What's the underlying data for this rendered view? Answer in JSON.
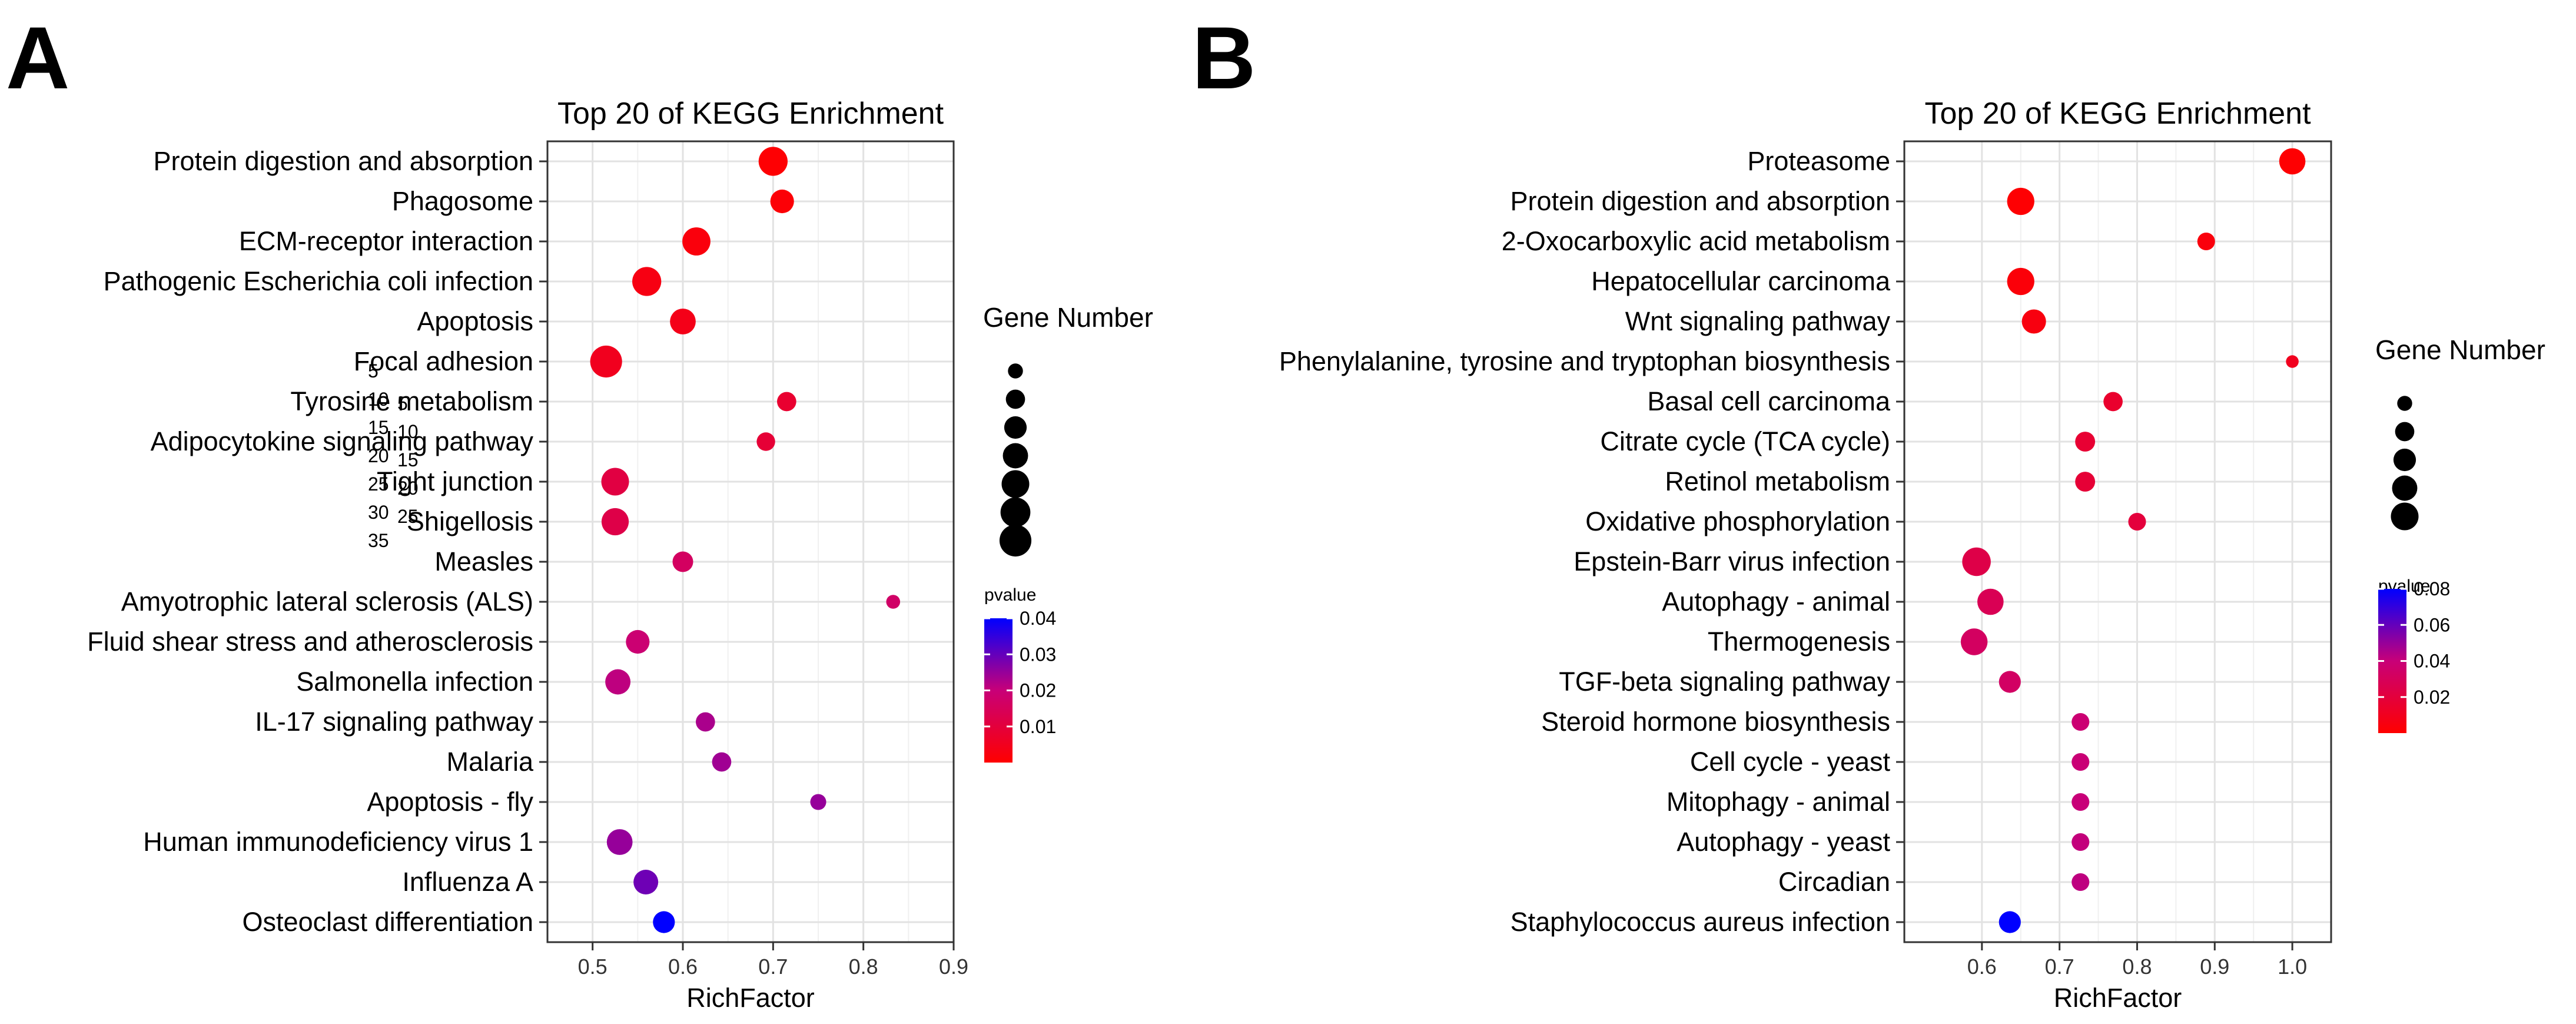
{
  "panels": [
    {
      "letter": "A"
    },
    {
      "letter": "B"
    }
  ],
  "chart_data": [
    {
      "type": "scatter",
      "title": "Top 20 of KEGG Enrichment",
      "xlabel": "RichFactor",
      "ylabel": "",
      "xlim": [
        0.45,
        0.9
      ],
      "xticks": [
        "0.5",
        "0.6",
        "0.7",
        "0.8",
        "0.9"
      ],
      "xtick_values": [
        0.5,
        0.6,
        0.7,
        0.8,
        0.9
      ],
      "size_legend": {
        "title": "Gene Number",
        "values": [
          5,
          10,
          15,
          20,
          25,
          30,
          35
        ]
      },
      "color_legend": {
        "title": "pvalue",
        "range": [
          0.0,
          0.04
        ],
        "ticks": [
          "0.04",
          "0.03",
          "0.02",
          "0.01"
        ],
        "tick_values": [
          0.04,
          0.03,
          0.02,
          0.01
        ],
        "low_color": "#ff0000",
        "mid_color": "#c80078",
        "high_color": "#0000ff"
      },
      "categories": [
        "Protein digestion and absorption",
        "Phagosome",
        "ECM-receptor interaction",
        "Pathogenic Escherichia coli infection",
        "Apoptosis",
        "Focal adhesion",
        "Tyrosine metabolism",
        "Adipocytokine signaling pathway",
        "Tight junction",
        "Shigellosis",
        "Measles",
        "Amyotrophic lateral sclerosis (ALS)",
        "Fluid shear stress and atherosclerosis",
        "Salmonella infection",
        "IL-17 signaling pathway",
        "Malaria",
        "Apoptosis - fly",
        "Human immunodeficiency virus 1",
        "Influenza A",
        "Osteoclast differentiation"
      ],
      "points": [
        {
          "x": 0.7,
          "gene": 28,
          "p": 0.0005
        },
        {
          "x": 0.71,
          "gene": 17,
          "p": 0.001
        },
        {
          "x": 0.615,
          "gene": 26,
          "p": 0.002
        },
        {
          "x": 0.56,
          "gene": 28,
          "p": 0.003
        },
        {
          "x": 0.6,
          "gene": 21,
          "p": 0.004
        },
        {
          "x": 0.515,
          "gene": 35,
          "p": 0.005
        },
        {
          "x": 0.715,
          "gene": 10,
          "p": 0.008
        },
        {
          "x": 0.692,
          "gene": 9,
          "p": 0.009
        },
        {
          "x": 0.525,
          "gene": 25,
          "p": 0.011
        },
        {
          "x": 0.525,
          "gene": 24,
          "p": 0.012
        },
        {
          "x": 0.6,
          "gene": 12,
          "p": 0.016
        },
        {
          "x": 0.833,
          "gene": 4,
          "p": 0.017
        },
        {
          "x": 0.55,
          "gene": 17,
          "p": 0.019
        },
        {
          "x": 0.528,
          "gene": 20,
          "p": 0.021
        },
        {
          "x": 0.625,
          "gene": 10,
          "p": 0.023
        },
        {
          "x": 0.643,
          "gene": 10,
          "p": 0.024
        },
        {
          "x": 0.75,
          "gene": 6,
          "p": 0.025
        },
        {
          "x": 0.53,
          "gene": 21,
          "p": 0.025
        },
        {
          "x": 0.559,
          "gene": 19,
          "p": 0.029
        },
        {
          "x": 0.579,
          "gene": 14,
          "p": 0.04
        }
      ]
    },
    {
      "type": "scatter",
      "title": "Top 20 of KEGG Enrichment",
      "xlabel": "RichFactor",
      "ylabel": "",
      "xlim": [
        0.5,
        1.05
      ],
      "xticks": [
        "0.6",
        "0.7",
        "0.8",
        "0.9",
        "1.0"
      ],
      "xtick_values": [
        0.6,
        0.7,
        0.8,
        0.9,
        1.0
      ],
      "size_legend": {
        "title": "Gene Number",
        "values": [
          5,
          10,
          15,
          20,
          25
        ]
      },
      "color_legend": {
        "title": "pvalue",
        "range": [
          0.0,
          0.08
        ],
        "ticks": [
          "0.08",
          "0.06",
          "0.04",
          "0.02"
        ],
        "tick_values": [
          0.08,
          0.06,
          0.04,
          0.02
        ],
        "low_color": "#ff0000",
        "mid_color": "#c80078",
        "high_color": "#0000ff"
      },
      "categories": [
        "Proteasome",
        "Protein digestion and absorption",
        "2-Oxocarboxylic acid metabolism",
        "Hepatocellular carcinoma",
        "Wnt signaling pathway",
        "Phenylalanine, tyrosine and tryptophan biosynthesis",
        "Basal cell carcinoma",
        "Citrate cycle (TCA cycle)",
        "Retinol metabolism",
        "Oxidative phosphorylation",
        "Epstein-Barr virus infection",
        "Autophagy - animal",
        "Thermogenesis",
        "TGF-beta signaling pathway",
        "Steroid hormone biosynthesis",
        "Cell cycle - yeast",
        "Mitophagy - animal",
        "Autophagy - yeast",
        "Circadian",
        "Staphylococcus aureus infection"
      ],
      "points": [
        {
          "x": 1.0,
          "gene": 22,
          "p": 0.0005
        },
        {
          "x": 0.65,
          "gene": 24,
          "p": 0.001
        },
        {
          "x": 0.889,
          "gene": 8,
          "p": 0.004
        },
        {
          "x": 0.65,
          "gene": 24,
          "p": 0.003
        },
        {
          "x": 0.667,
          "gene": 18,
          "p": 0.005
        },
        {
          "x": 1.0,
          "gene": 3,
          "p": 0.01
        },
        {
          "x": 0.769,
          "gene": 10,
          "p": 0.015
        },
        {
          "x": 0.733,
          "gene": 11,
          "p": 0.017
        },
        {
          "x": 0.733,
          "gene": 11,
          "p": 0.018
        },
        {
          "x": 0.8,
          "gene": 8,
          "p": 0.02
        },
        {
          "x": 0.593,
          "gene": 27,
          "p": 0.024
        },
        {
          "x": 0.611,
          "gene": 22,
          "p": 0.028
        },
        {
          "x": 0.59,
          "gene": 23,
          "p": 0.032
        },
        {
          "x": 0.636,
          "gene": 14,
          "p": 0.033
        },
        {
          "x": 0.727,
          "gene": 8,
          "p": 0.038
        },
        {
          "x": 0.727,
          "gene": 8,
          "p": 0.039
        },
        {
          "x": 0.727,
          "gene": 8,
          "p": 0.04
        },
        {
          "x": 0.727,
          "gene": 8,
          "p": 0.041
        },
        {
          "x": 0.727,
          "gene": 8,
          "p": 0.042
        },
        {
          "x": 0.636,
          "gene": 14,
          "p": 0.08
        }
      ]
    }
  ]
}
